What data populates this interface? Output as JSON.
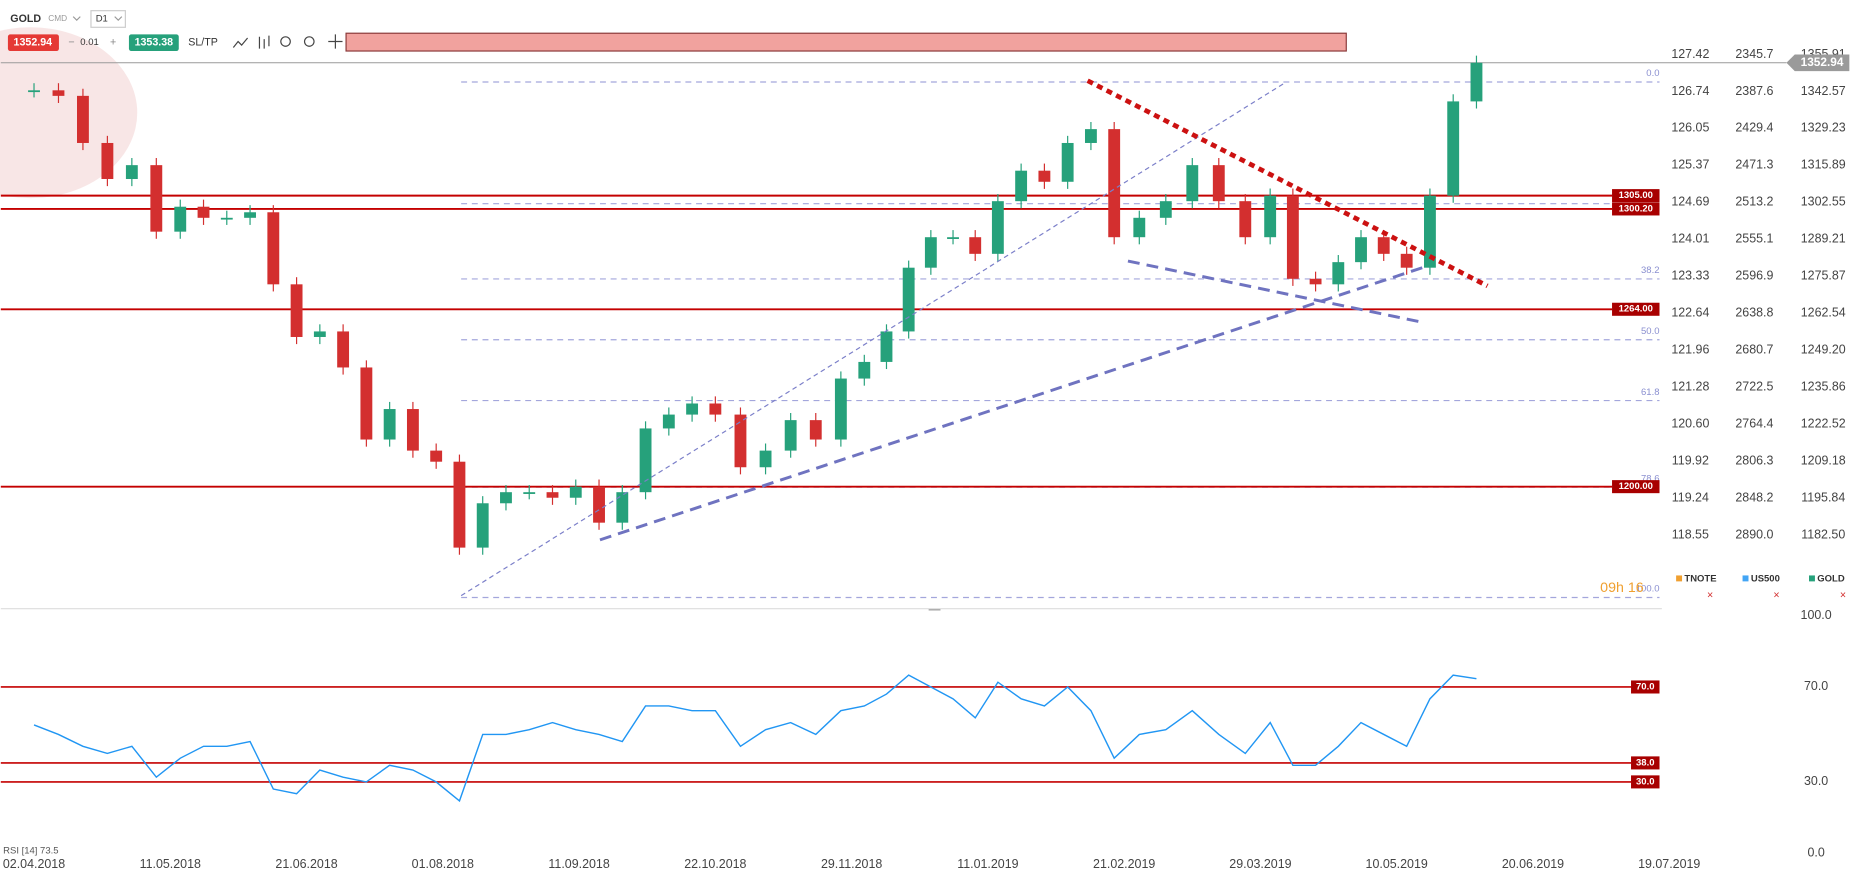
{
  "toolbar": {
    "symbol": "GOLD",
    "market": "CMD",
    "timeframe": "D1",
    "spread": 0.01,
    "ask": 1353.38,
    "sltp": "SL/TP"
  },
  "timer": "09h 16",
  "legend": [
    "TNOTE",
    "US500",
    "GOLD"
  ],
  "chart_data": [
    {
      "type": "candlestick",
      "x": [
        "02.04.2018",
        "09.04.2018",
        "16.04.2018",
        "23.04.2018",
        "30.04.2018",
        "07.05.2018",
        "14.05.2018",
        "21.05.2018",
        "28.05.2018",
        "04.06.2018",
        "11.06.2018",
        "18.06.2018",
        "25.06.2018",
        "02.07.2018",
        "09.07.2018",
        "16.07.2018",
        "23.07.2018",
        "30.07.2018",
        "06.08.2018",
        "13.08.2018",
        "20.08.2018",
        "27.08.2018",
        "03.09.2018",
        "10.09.2018",
        "17.09.2018",
        "24.09.2018",
        "01.10.2018",
        "08.10.2018",
        "15.10.2018",
        "22.10.2018",
        "29.10.2018",
        "05.11.2018",
        "12.11.2018",
        "19.11.2018",
        "26.11.2018",
        "03.12.2018",
        "10.12.2018",
        "17.12.2018",
        "24.12.2018",
        "31.12.2018",
        "07.01.2019",
        "14.01.2019",
        "21.01.2019",
        "28.01.2019",
        "04.02.2019",
        "11.02.2019",
        "18.02.2019",
        "25.02.2019",
        "04.03.2019",
        "11.03.2019",
        "18.03.2019",
        "25.03.2019",
        "01.04.2019",
        "08.04.2019",
        "15.04.2019",
        "22.04.2019",
        "29.04.2019",
        "06.05.2019",
        "13.05.2019",
        "20.05.2019",
        "27.05.2019",
        "03.06.2019"
      ],
      "series": [
        {
          "name": "GOLD",
          "up_color": "#26a17b",
          "down_color": "#d32f2f",
          "values": [
            1343,
            1341,
            1324,
            1311,
            1316,
            1292,
            1301,
            1297,
            1297,
            1299,
            1273,
            1254,
            1256,
            1243,
            1217,
            1228,
            1213,
            1209,
            1178,
            1194,
            1198,
            1198,
            1196,
            1200,
            1187,
            1198,
            1221,
            1226,
            1230,
            1226,
            1207,
            1213,
            1224,
            1217,
            1239,
            1245,
            1256,
            1279,
            1290,
            1290,
            1284,
            1303,
            1314,
            1310,
            1324,
            1329,
            1290,
            1297,
            1303,
            1316,
            1303,
            1290,
            1305,
            1275,
            1273,
            1281,
            1290,
            1284,
            1279,
            1305,
            1339,
            1352.94
          ]
        }
      ],
      "last_price": 1352.94,
      "xticks": [
        "02.04.2018",
        "11.05.2018",
        "21.06.2018",
        "01.08.2018",
        "11.09.2018",
        "22.10.2018",
        "29.11.2018",
        "11.01.2019",
        "21.02.2019",
        "29.03.2019",
        "10.05.2019",
        "20.06.2019",
        "19.07.2019"
      ],
      "ylim": [
        1156.4,
        1363.6
      ],
      "yticks": [
        1355.91,
        1342.57,
        1329.23,
        1315.89,
        1302.55,
        1289.21,
        1275.87,
        1262.54,
        {
          "value": 1249.2,
          "label": "1249.20"
        },
        1235.86,
        1222.52,
        1209.18,
        1195.84,
        {
          "value": 1182.5,
          "label": "1182.50"
        }
      ],
      "tnote_ticks": [
        "127.42",
        "126.74",
        "126.05",
        "125.37",
        "124.69",
        "124.01",
        "123.33",
        "122.64",
        "121.96",
        "121.28",
        "120.60",
        "119.92",
        "119.24",
        "118.55"
      ],
      "us500_ticks": [
        "2345.7",
        "2387.6",
        "2429.4",
        "2471.3",
        "2513.2",
        "2555.1",
        "2596.9",
        "2638.8",
        "2680.7",
        "2722.5",
        "2764.4",
        "2806.3",
        "2848.2",
        "2890.0"
      ],
      "levels": [
        {
          "value": 1305,
          "label": "1305.00"
        },
        {
          "value": 1300.2,
          "label": "1300.20"
        },
        {
          "value": 1264,
          "label": "1264.00"
        },
        {
          "value": 1200,
          "label": "1200.00"
        }
      ],
      "fib_high": 1346,
      "fib_low": 1160,
      "fib_levels": [
        {
          "value": 0,
          "label": "0.0"
        },
        {
          "value": 23.6,
          "label": null
        },
        {
          "value": 38.2,
          "label": "38.2"
        },
        {
          "value": 50,
          "label": "50.0"
        },
        {
          "value": 61.8,
          "label": "61.8"
        },
        {
          "value": 78.6,
          "label": "78.6"
        },
        {
          "value": 100,
          "label": "100.0"
        }
      ]
    },
    {
      "type": "line",
      "title": "RSI [14]",
      "last_value": 73.5,
      "series": [
        {
          "name": "RSI",
          "color": "#2196f3",
          "values": [
            54,
            50,
            45,
            42,
            45,
            32,
            40,
            45,
            45,
            47,
            27,
            25,
            35,
            32,
            30,
            37,
            35,
            30,
            22,
            50,
            50,
            52,
            55,
            52,
            50,
            47,
            62,
            62,
            60,
            60,
            45,
            52,
            55,
            50,
            60,
            62,
            67,
            75,
            70,
            65,
            57,
            72,
            65,
            62,
            70,
            60,
            40,
            50,
            52,
            60,
            50,
            42,
            55,
            37,
            37,
            45,
            55,
            50,
            45,
            65,
            75,
            73.5
          ]
        }
      ],
      "ylim": [
        0,
        100
      ],
      "yticks": [
        {
          "value": 100,
          "label": "100.0"
        },
        {
          "value": 70,
          "label": "70.0"
        },
        {
          "value": 30,
          "label": "30.0"
        },
        {
          "value": 0,
          "label": "0.0"
        }
      ],
      "levels": [
        {
          "value": 70,
          "label": "70.0"
        },
        {
          "value": 38,
          "label": "38.0"
        },
        {
          "value": 30,
          "label": "30.0"
        }
      ]
    }
  ]
}
